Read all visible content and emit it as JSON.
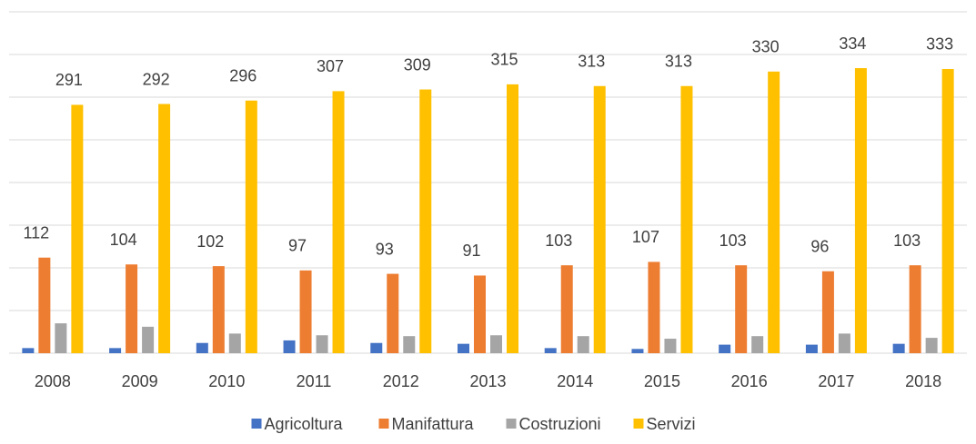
{
  "chart_data": {
    "type": "bar",
    "categories": [
      "2008",
      "2009",
      "2010",
      "2011",
      "2012",
      "2013",
      "2014",
      "2015",
      "2016",
      "2017",
      "2018"
    ],
    "series": [
      {
        "name": "Agricoltura",
        "color": "#4472c4",
        "show_labels": false,
        "values": [
          6,
          6,
          12,
          15,
          12,
          11,
          6,
          5,
          10,
          10,
          11
        ]
      },
      {
        "name": "Manifattura",
        "color": "#ed7d31",
        "show_labels": true,
        "values": [
          112,
          104,
          102,
          97,
          93,
          91,
          103,
          107,
          103,
          96,
          103
        ]
      },
      {
        "name": "Costruzioni",
        "color": "#a5a5a5",
        "show_labels": false,
        "values": [
          35,
          31,
          23,
          21,
          20,
          21,
          20,
          17,
          20,
          23,
          18
        ]
      },
      {
        "name": "Servizi",
        "color": "#ffc000",
        "show_labels": true,
        "values": [
          291,
          292,
          296,
          307,
          309,
          315,
          313,
          313,
          330,
          334,
          333
        ]
      }
    ],
    "ylim": [
      0,
      400
    ],
    "yticks": [
      0,
      50,
      100,
      150,
      200,
      250,
      300,
      350,
      400
    ],
    "grid": true,
    "legend": "bottom"
  }
}
